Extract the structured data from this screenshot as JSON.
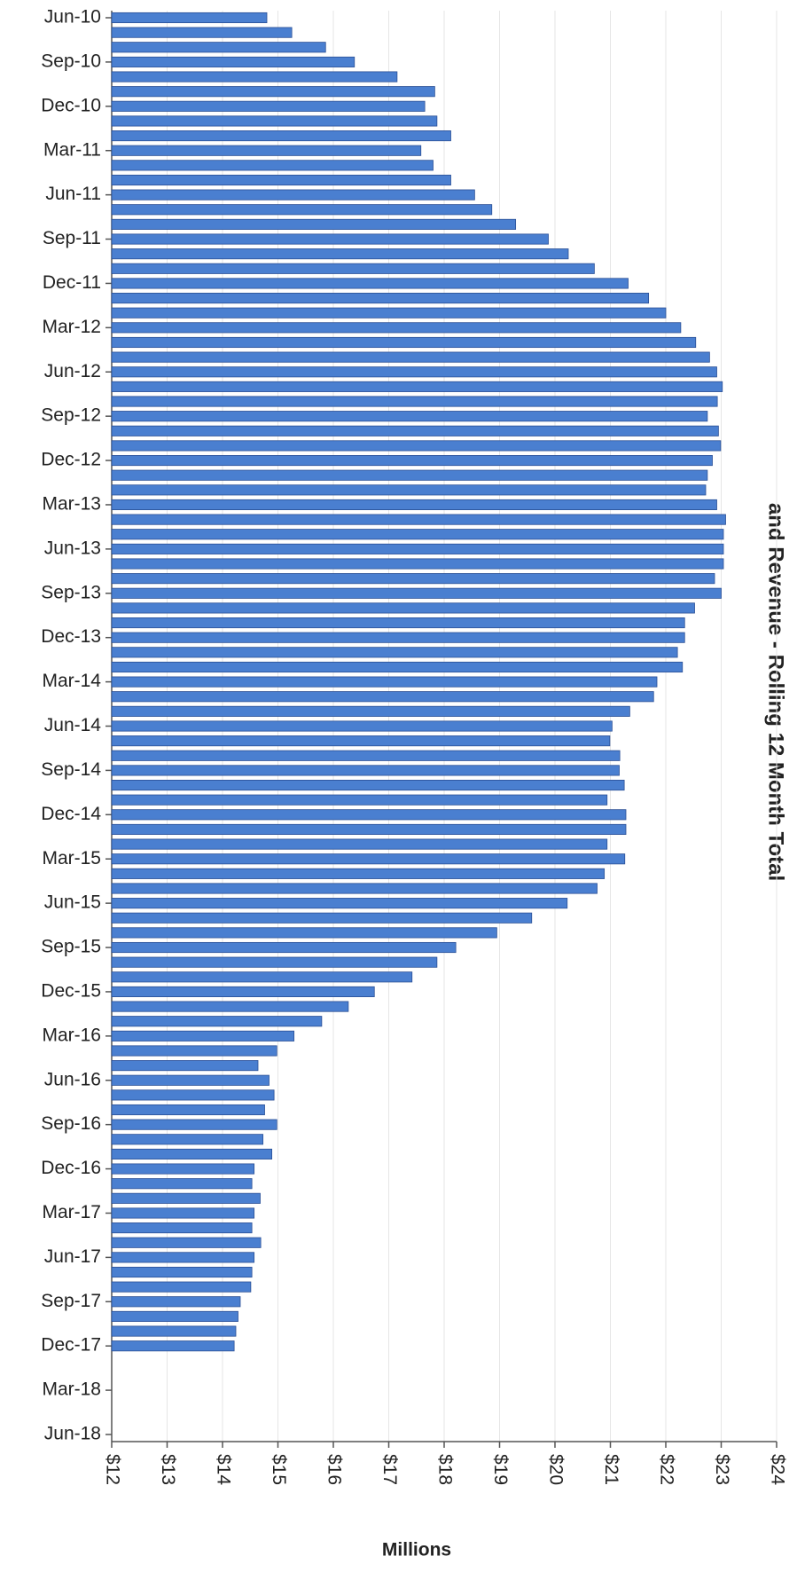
{
  "chart_data": {
    "type": "bar",
    "orientation": "horizontal",
    "title": "and Revenue - Rolling 12 Month Total",
    "x_label": "Millions",
    "color": "#4a7fd0",
    "categories": [
      "Jun-10",
      null,
      null,
      "Sep-10",
      null,
      null,
      "Dec-10",
      null,
      null,
      "Mar-11",
      null,
      null,
      "Jun-11",
      null,
      null,
      "Sep-11",
      null,
      null,
      "Dec-11",
      null,
      null,
      "Mar-12",
      null,
      null,
      "Jun-12",
      null,
      null,
      "Sep-12",
      null,
      null,
      "Dec-12",
      null,
      null,
      "Mar-13",
      null,
      null,
      "Jun-13",
      null,
      null,
      "Sep-13",
      null,
      null,
      "Dec-13",
      null,
      null,
      "Mar-14",
      null,
      null,
      "Jun-14",
      null,
      null,
      "Sep-14",
      null,
      null,
      "Dec-14",
      null,
      null,
      "Mar-15",
      null,
      null,
      "Jun-15",
      null,
      null,
      "Sep-15",
      null,
      null,
      "Dec-15",
      null,
      null,
      "Mar-16",
      null,
      null,
      "Jun-16",
      null,
      null,
      "Sep-16",
      null,
      null,
      "Dec-16",
      null,
      null,
      "Mar-17",
      null,
      null,
      "Jun-17",
      null,
      null,
      "Sep-17",
      null,
      null,
      "Dec-17",
      null,
      null,
      "Mar-18",
      null,
      null,
      "Jun-18"
    ],
    "values": [
      14.8,
      15.25,
      15.86,
      16.38,
      17.15,
      17.83,
      17.65,
      17.87,
      18.12,
      17.58,
      17.8,
      18.12,
      18.55,
      18.86,
      19.29,
      19.88,
      20.24,
      20.71,
      21.32,
      21.69,
      22.0,
      22.27,
      22.54,
      22.79,
      22.92,
      23.02,
      22.93,
      22.75,
      22.95,
      22.99,
      22.84,
      22.75,
      22.72,
      22.92,
      23.08,
      23.04,
      23.04,
      23.04,
      22.88,
      23.0,
      22.52,
      22.34,
      22.34,
      22.21,
      22.3,
      21.84,
      21.78,
      21.35,
      21.03,
      20.99,
      21.17,
      21.16,
      21.25,
      20.94,
      21.28,
      21.28,
      20.94,
      21.26,
      20.89,
      20.76,
      20.22,
      19.58,
      18.95,
      18.21,
      17.87,
      17.42,
      16.74,
      16.27,
      15.79,
      15.29,
      14.98,
      14.64,
      14.84,
      14.93,
      14.76,
      14.98,
      14.73,
      14.89,
      14.57,
      14.53,
      14.68,
      14.57,
      14.53,
      14.69,
      14.57,
      14.53,
      14.51,
      14.32,
      14.28,
      14.24,
      14.21,
      null,
      null,
      null,
      null,
      null,
      null
    ],
    "xlim": [
      12,
      24
    ],
    "xticks": [
      {
        "value": 12,
        "label": "$12"
      },
      {
        "value": 13,
        "label": "$13"
      },
      {
        "value": 14,
        "label": "$14"
      },
      {
        "value": 15,
        "label": "$15"
      },
      {
        "value": 16,
        "label": "$16"
      },
      {
        "value": 17,
        "label": "$17"
      },
      {
        "value": 18,
        "label": "$18"
      },
      {
        "value": 19,
        "label": "$19"
      },
      {
        "value": 20,
        "label": "$20"
      },
      {
        "value": 21,
        "label": "$21"
      },
      {
        "value": 22,
        "label": "$22"
      },
      {
        "value": 23,
        "label": "$23"
      },
      {
        "value": 24,
        "label": "$24"
      }
    ],
    "grid": true
  }
}
